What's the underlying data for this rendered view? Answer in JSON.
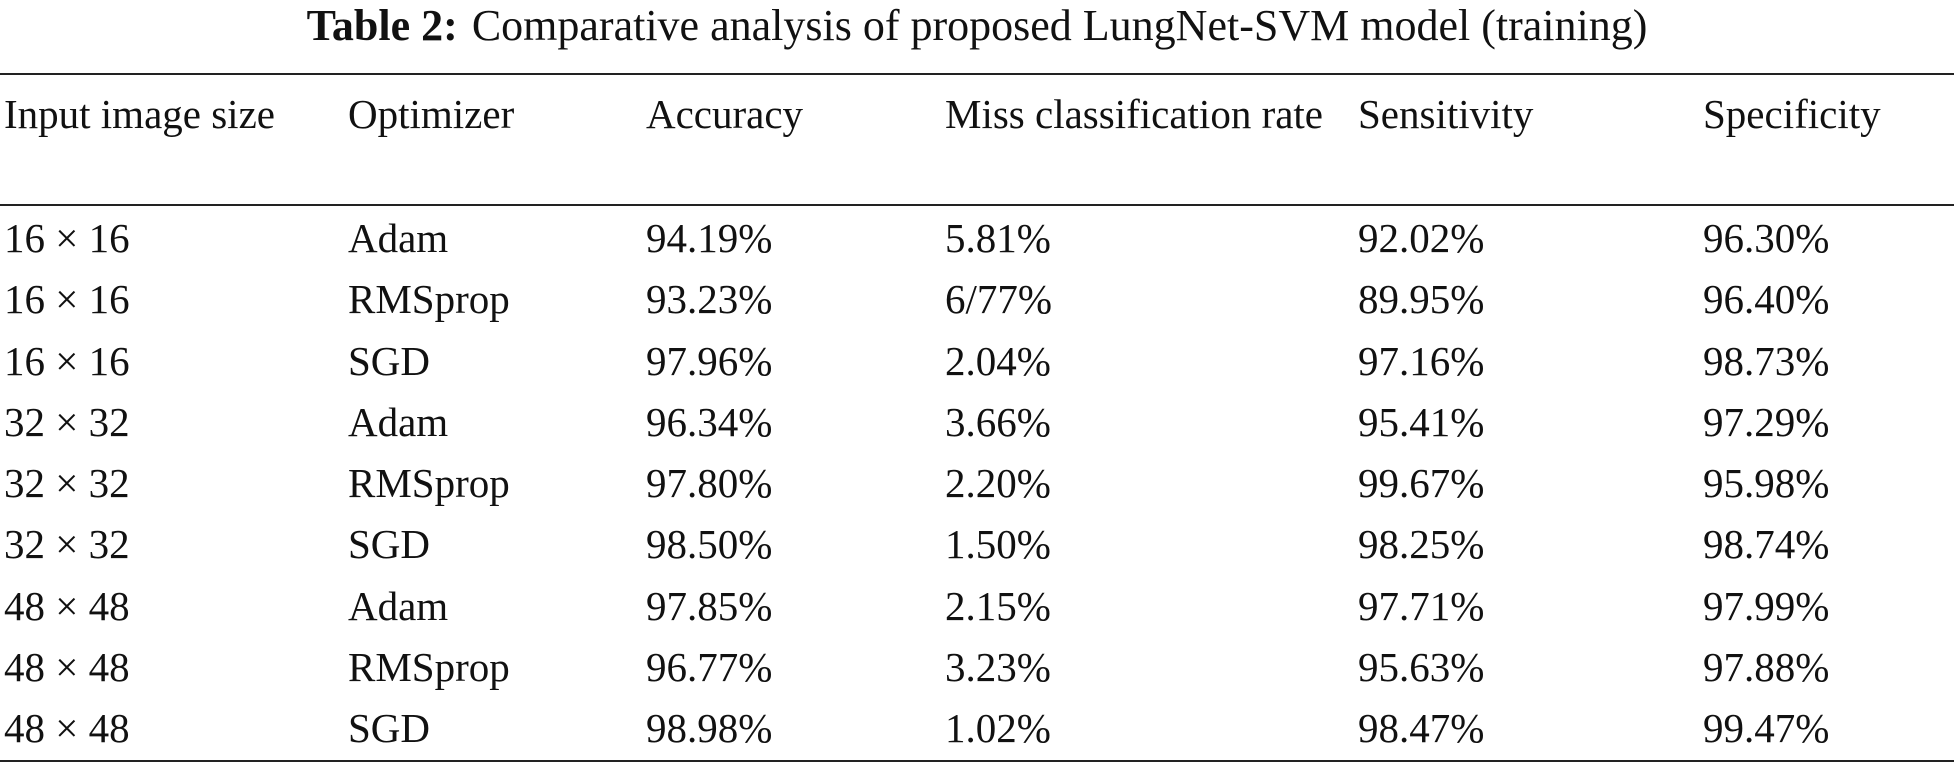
{
  "caption": {
    "label": "Table 2:",
    "text": "Comparative analysis of proposed LungNet-SVM model (training)"
  },
  "table": {
    "headers": [
      "Input image size",
      "Optimizer",
      "Accuracy",
      "Miss classification rate",
      "Sensitivity",
      "Specificity"
    ],
    "rows": [
      [
        "16 × 16",
        "Adam",
        "94.19%",
        "5.81%",
        "92.02%",
        "96.30%"
      ],
      [
        "16 × 16",
        "RMSprop",
        "93.23%",
        "6/77%",
        "89.95%",
        "96.40%"
      ],
      [
        "16 × 16",
        "SGD",
        "97.96%",
        "2.04%",
        "97.16%",
        "98.73%"
      ],
      [
        "32 × 32",
        "Adam",
        "96.34%",
        "3.66%",
        "95.41%",
        "97.29%"
      ],
      [
        "32 × 32",
        "RMSprop",
        "97.80%",
        "2.20%",
        "99.67%",
        "95.98%"
      ],
      [
        "32 × 32",
        "SGD",
        "98.50%",
        "1.50%",
        "98.25%",
        "98.74%"
      ],
      [
        "48 × 48",
        "Adam",
        "97.85%",
        "2.15%",
        "97.71%",
        "97.99%"
      ],
      [
        "48 × 48",
        "RMSprop",
        "96.77%",
        "3.23%",
        "95.63%",
        "97.88%"
      ],
      [
        "48 × 48",
        "SGD",
        "98.98%",
        "1.02%",
        "98.47%",
        "99.47%"
      ]
    ]
  }
}
